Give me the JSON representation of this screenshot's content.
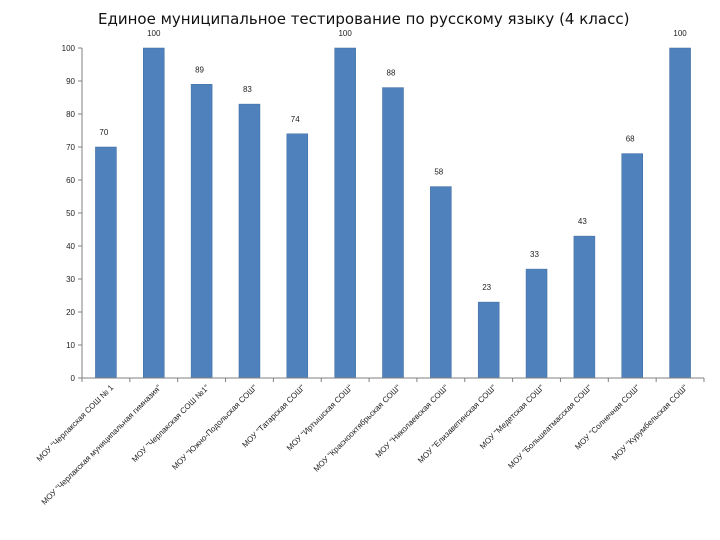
{
  "chart_data": {
    "type": "bar",
    "title": "Единое муниципальное тестирование по русскому языку (4 класс)",
    "xlabel": "",
    "ylabel": "",
    "ylim": [
      0,
      100
    ],
    "yticks": [
      0,
      10,
      20,
      30,
      40,
      50,
      60,
      70,
      80,
      90,
      100
    ],
    "grid": false,
    "legend": "none",
    "bar_color": "#4F81BD",
    "categories": [
      "МОУ \"Черлакская СОШ № 1",
      "МОУ \"Черлакская муниципальная гимназия\"",
      "МОУ \"Черлакская СОШ №1\"",
      "МОУ \"Южно-Подольская СОШ\"",
      "МОУ \"Татарская СОШ\"",
      "МОУ \"Иртышская СОШ\"",
      "МОУ \"Краснооктябрьская СОШ\"",
      "МОУ \"Николаевская СОШ\"",
      "МОУ \"Елизаветинская СОШ\"",
      "МОУ \"Медетская СОШ\"",
      "МОУ \"Большеатмасская СОШ\"",
      "МОУ \"Солнечная СОШ\"",
      "МОУ \"Курумбельская СОШ\""
    ],
    "values": [
      70,
      100,
      89,
      83,
      74,
      100,
      88,
      58,
      23,
      33,
      43,
      68,
      100
    ]
  }
}
